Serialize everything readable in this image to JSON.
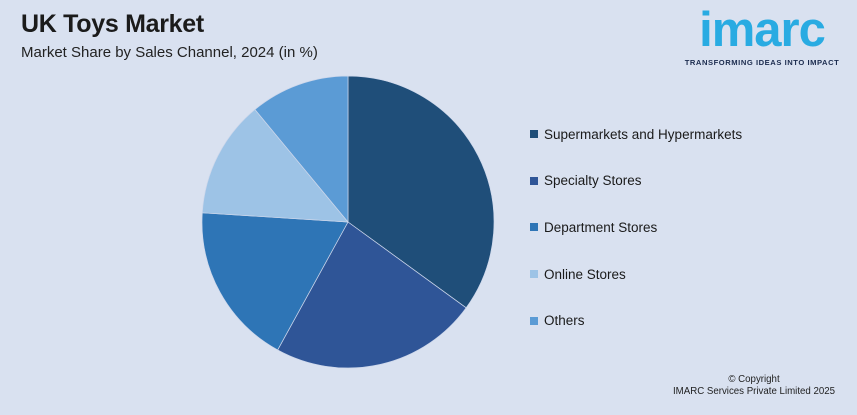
{
  "header": {
    "title": "UK Toys Market",
    "subtitle": "Market Share by Sales Channel, 2024 (in %)"
  },
  "logo": {
    "brand": "imarc",
    "tagline": "TRANSFORMING IDEAS INTO IMPACT",
    "brand_color": "#29ABE2",
    "tagline_color": "#1B2B4E"
  },
  "footer": {
    "line1": "© Copyright",
    "line2": "IMARC Services Private Limited 2025"
  },
  "colors": {
    "background": "#D9E1F0",
    "slice_border": "#CDD7EB"
  },
  "chart_data": {
    "type": "pie",
    "title": "UK Toys Market",
    "subtitle": "Market Share by Sales Channel, 2024 (in %)",
    "unit": "%",
    "start_angle_deg": 0,
    "direction": "clockwise",
    "legend_position": "right",
    "data_labels_visible": false,
    "series": [
      {
        "name": "Supermarkets and Hypermarkets",
        "value": 35,
        "color": "#1F4E79"
      },
      {
        "name": "Specialty Stores",
        "value": 23,
        "color": "#2F5597"
      },
      {
        "name": "Department Stores",
        "value": 18,
        "color": "#2E75B6"
      },
      {
        "name": "Online Stores",
        "value": 13,
        "color": "#9DC3E6"
      },
      {
        "name": "Others",
        "value": 11,
        "color": "#5B9BD5"
      }
    ]
  }
}
